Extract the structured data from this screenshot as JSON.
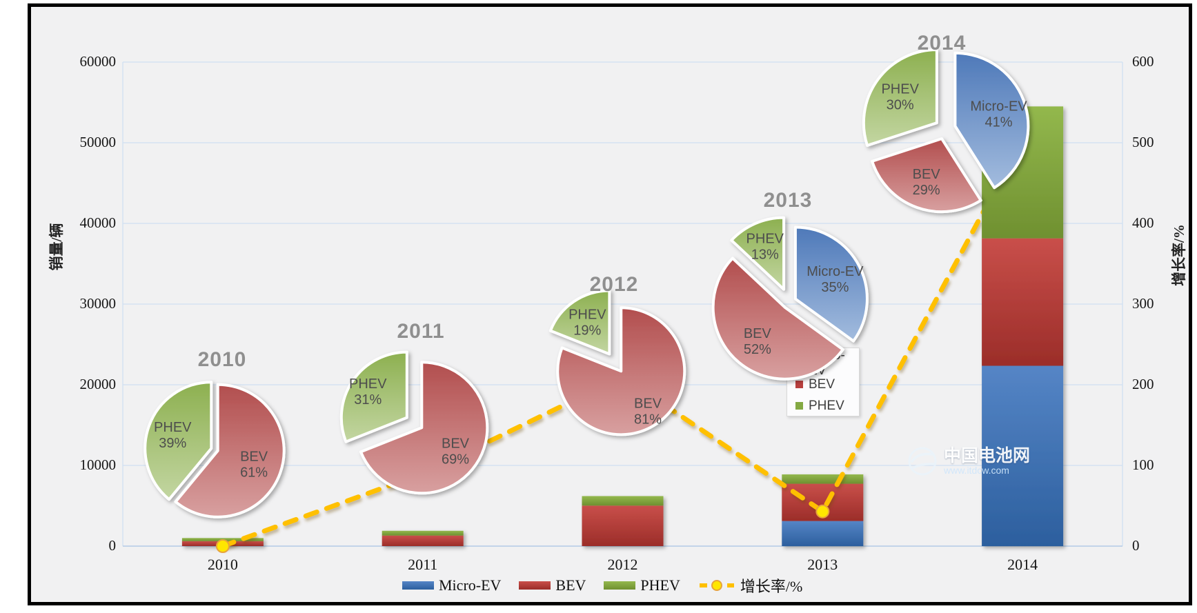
{
  "colors": {
    "micro_ev": "#3a72b9",
    "bev": "#b8403e",
    "phev": "#84a943",
    "growth_line": "#ffc000",
    "growth_marker": "#ffe600",
    "growth_marker_edge": "#e7a33b",
    "gridline": "#cfe0f2",
    "baseline": "#b3cbe6",
    "frame": "#000000",
    "chart_background": "#f1f1f2",
    "year_title_gray": "#8f8f8f",
    "pie_label_gray": "#4d4d4d"
  },
  "chart_data": [
    {
      "type": "bar",
      "subtype": "stacked-column-with-growth-line-and-pies",
      "categories": [
        "2010",
        "2011",
        "2012",
        "2013",
        "2014"
      ],
      "series": [
        {
          "name": "Micro-EV",
          "color": "#3a72b9",
          "values": [
            0,
            0,
            0,
            3110,
            22350
          ]
        },
        {
          "name": "BEV",
          "color": "#b8403e",
          "values": [
            610,
            1310,
            5020,
            4620,
            15800
          ]
        },
        {
          "name": "PHEV",
          "color": "#84a943",
          "values": [
            390,
            590,
            1180,
            1160,
            16350
          ]
        }
      ],
      "line_series": {
        "name": "增长率/%",
        "color": "#ffc000",
        "axis": "right",
        "values": [
          0,
          90,
          210,
          43,
          505
        ]
      },
      "left_axis": {
        "title": "销量/辆",
        "min": 0,
        "max": 60000,
        "ticks": [
          0,
          10000,
          20000,
          30000,
          40000,
          50000,
          60000
        ]
      },
      "right_axis": {
        "title": "增长率/%",
        "min": 0,
        "max": 600,
        "ticks": [
          0,
          100,
          200,
          300,
          400,
          500,
          600
        ]
      },
      "legend": {
        "position": "bottom",
        "items": [
          {
            "label": "Micro-EV",
            "swatch": "bar",
            "color": "#3a72b9"
          },
          {
            "label": "BEV",
            "swatch": "bar",
            "color": "#b8403e"
          },
          {
            "label": "PHEV",
            "swatch": "bar",
            "color": "#84a943"
          },
          {
            "label": "增长率/%",
            "swatch": "line-marker",
            "color": "#ffc000"
          }
        ]
      },
      "grid": true
    },
    {
      "type": "pie",
      "title": "2010",
      "slices": [
        {
          "label": "BEV",
          "pct": 61
        },
        {
          "label": "PHEV",
          "pct": 39
        }
      ]
    },
    {
      "type": "pie",
      "title": "2011",
      "slices": [
        {
          "label": "BEV",
          "pct": 69
        },
        {
          "label": "PHEV",
          "pct": 31
        }
      ]
    },
    {
      "type": "pie",
      "title": "2012",
      "slices": [
        {
          "label": "BEV",
          "pct": 81
        },
        {
          "label": "PHEV",
          "pct": 19
        }
      ]
    },
    {
      "type": "pie",
      "title": "2013",
      "slices": [
        {
          "label": "Micro-EV",
          "pct": 35
        },
        {
          "label": "BEV",
          "pct": 52
        },
        {
          "label": "PHEV",
          "pct": 13
        }
      ],
      "mini_legend": [
        "Micro-EV",
        "BEV",
        "PHEV"
      ]
    },
    {
      "type": "pie",
      "title": "2014",
      "slices": [
        {
          "label": "Micro-EV",
          "pct": 41
        },
        {
          "label": "BEV",
          "pct": 29
        },
        {
          "label": "PHEV",
          "pct": 30
        }
      ]
    }
  ],
  "watermark": {
    "title": "中国电池网",
    "url": "www.itdcw.com"
  }
}
